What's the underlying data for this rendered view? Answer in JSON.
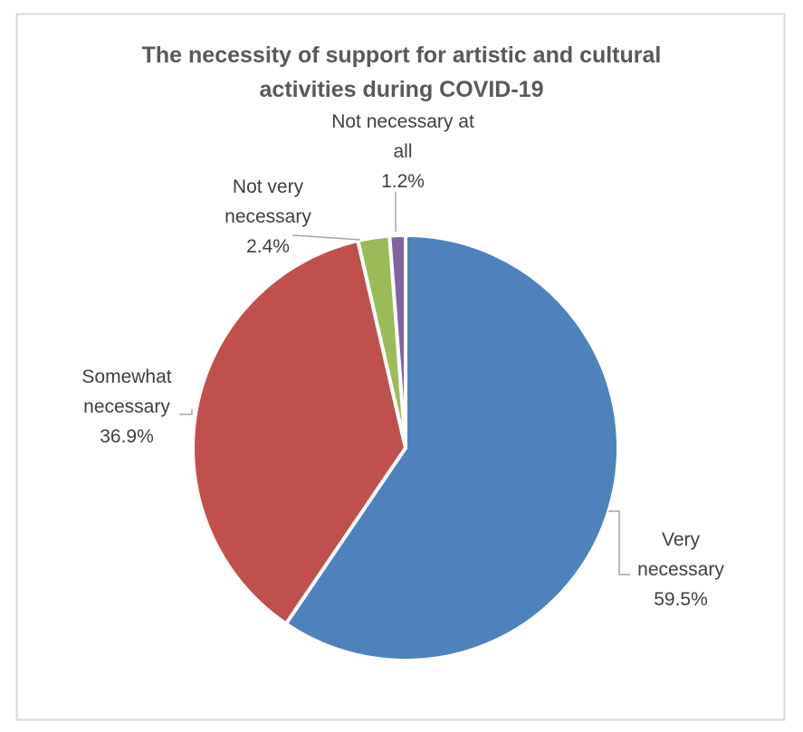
{
  "chart_data": {
    "type": "pie",
    "title": "The necessity of support for artistic and cultural activities during COVID-19",
    "categories": [
      "Very necessary",
      "Somewhat necessary",
      "Not very necessary",
      "Not necessary at all"
    ],
    "values": [
      59.5,
      36.9,
      2.4,
      1.2
    ],
    "value_labels": [
      "59.5%",
      "36.9%",
      "2.4%",
      "1.2%"
    ],
    "colors": [
      "#4f81bd",
      "#c0504d",
      "#9bbb59",
      "#8064a2"
    ]
  }
}
